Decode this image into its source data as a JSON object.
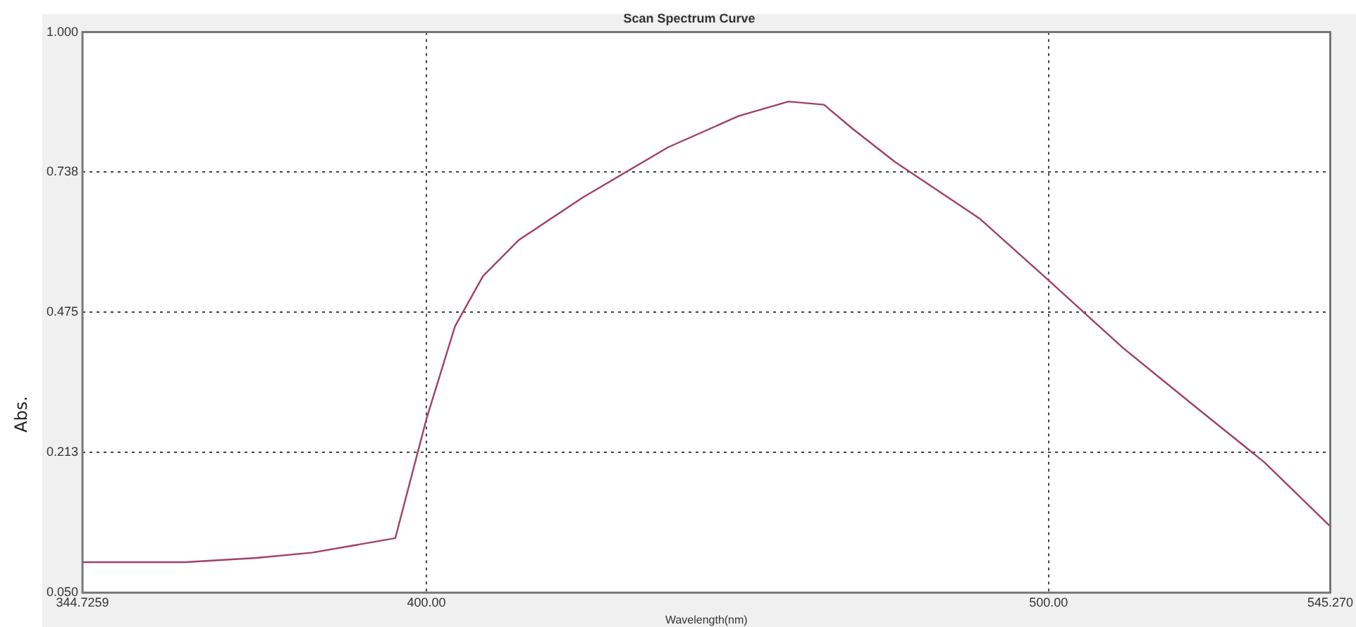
{
  "chart_data": {
    "type": "line",
    "title": "Scan Spectrum Curve",
    "xlabel": "Wavelength(nm)",
    "ylabel": "Abs.",
    "xlim": [
      344.7259,
      545.27
    ],
    "xticks": [
      {
        "value": 344.7259,
        "label": "344.7259"
      },
      {
        "value": 400,
        "label": "400.00"
      },
      {
        "value": 500,
        "label": "500.00"
      },
      {
        "value": 545.27,
        "label": "545.270"
      }
    ],
    "ylim": [
      -0.05,
      1.0
    ],
    "yticks": [
      {
        "value": -0.05,
        "label": "0.050"
      },
      {
        "value": 0.213,
        "label": "0.213"
      },
      {
        "value": 0.475,
        "label": "0.475"
      },
      {
        "value": 0.738,
        "label": "0.738"
      },
      {
        "value": 1.0,
        "label": "1.000"
      }
    ],
    "grid": true,
    "legend": false,
    "marker": "none",
    "line_style": "solid",
    "series": [
      {
        "color": "#a0406a",
        "x": [
          344.73,
          361.2,
          372.6,
          381.7,
          388.6,
          395,
          400,
          404.6,
          409.1,
          414.8,
          425.1,
          438.8,
          450.2,
          458.2,
          463.9,
          468.5,
          475.3,
          489,
          500,
          511.9,
          523.3,
          534.7,
          545.27
        ],
        "values": [
          0.007,
          0.007,
          0.015,
          0.025,
          0.039,
          0.052,
          0.275,
          0.449,
          0.543,
          0.61,
          0.69,
          0.784,
          0.843,
          0.87,
          0.864,
          0.819,
          0.757,
          0.65,
          0.535,
          0.409,
          0.301,
          0.194,
          0.074
        ]
      }
    ]
  }
}
